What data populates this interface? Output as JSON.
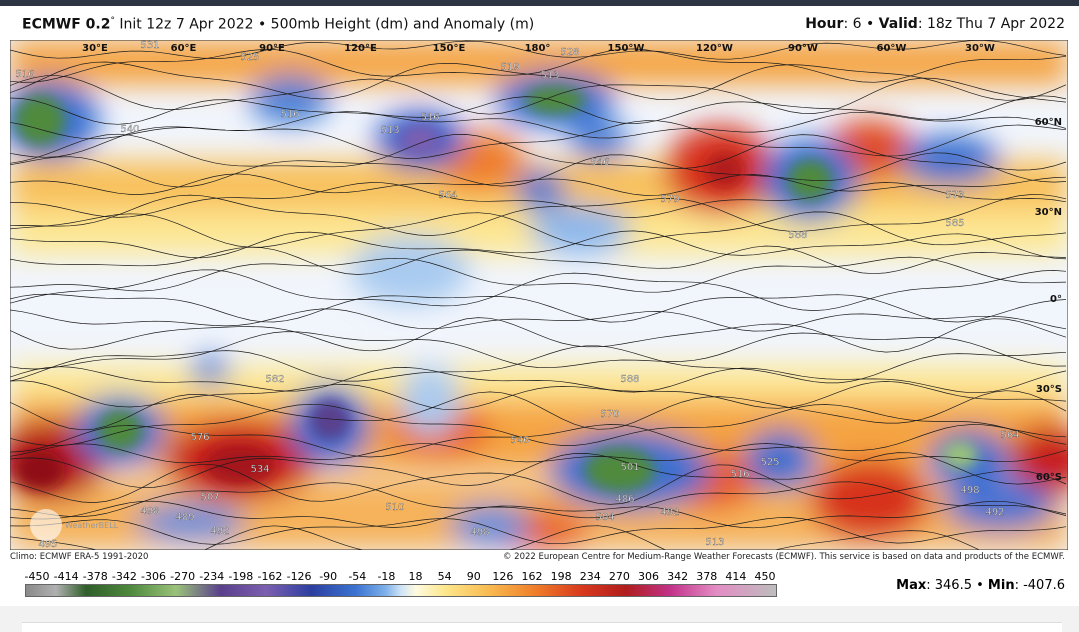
{
  "header": {
    "title": [
      {
        "text": "ECMWF 0.2",
        "bold": true
      },
      {
        "text": "°",
        "sup": true
      },
      {
        "text": " Init 12z 7 Apr 2022 • 500mb Height (dm) and Anomaly (m)"
      }
    ],
    "valid": [
      {
        "text": "Hour",
        "bold": true
      },
      {
        "text": ": 6 • "
      },
      {
        "text": "Valid",
        "bold": true
      },
      {
        "text": ": 18z Thu 7 Apr 2022"
      }
    ]
  },
  "map": {
    "longitudes": [
      "30°E",
      "60°E",
      "90°E",
      "120°E",
      "150°E",
      "180°",
      "150°W",
      "120°W",
      "90°W",
      "60°W",
      "30°W"
    ],
    "latitudes": [
      "60°N",
      "30°N",
      "0°",
      "30°S",
      "60°S"
    ],
    "contour_labels": [
      "516",
      "519",
      "513",
      "528",
      "531",
      "525",
      "516",
      "513",
      "516",
      "546",
      "564",
      "540",
      "573",
      "579",
      "585",
      "588",
      "582",
      "576",
      "534",
      "507",
      "498",
      "489",
      "492",
      "495",
      "510",
      "498",
      "504",
      "486",
      "501",
      "492",
      "513",
      "516",
      "525",
      "546",
      "570",
      "588",
      "498",
      "492",
      "564"
    ],
    "watermark": "WeatherBELL"
  },
  "footer": {
    "climo": "Climo: ECMWF ERA-5 1991-2020",
    "copyright": "© 2022 European Centre for Medium-Range Weather Forecasts (ECMWF). This service is based on data and products of the ECMWF."
  },
  "colorbar": {
    "ticks": [
      -450,
      -414,
      -378,
      -342,
      -306,
      -270,
      -234,
      -198,
      -162,
      -126,
      -90,
      -54,
      -18,
      18,
      54,
      90,
      126,
      162,
      198,
      234,
      270,
      306,
      342,
      378,
      414,
      450
    ]
  },
  "stats": [
    {
      "text": "Max",
      "bold": true
    },
    {
      "text": ": 346.5 • "
    },
    {
      "text": "Min",
      "bold": true
    },
    {
      "text": ": -407.6"
    }
  ]
}
